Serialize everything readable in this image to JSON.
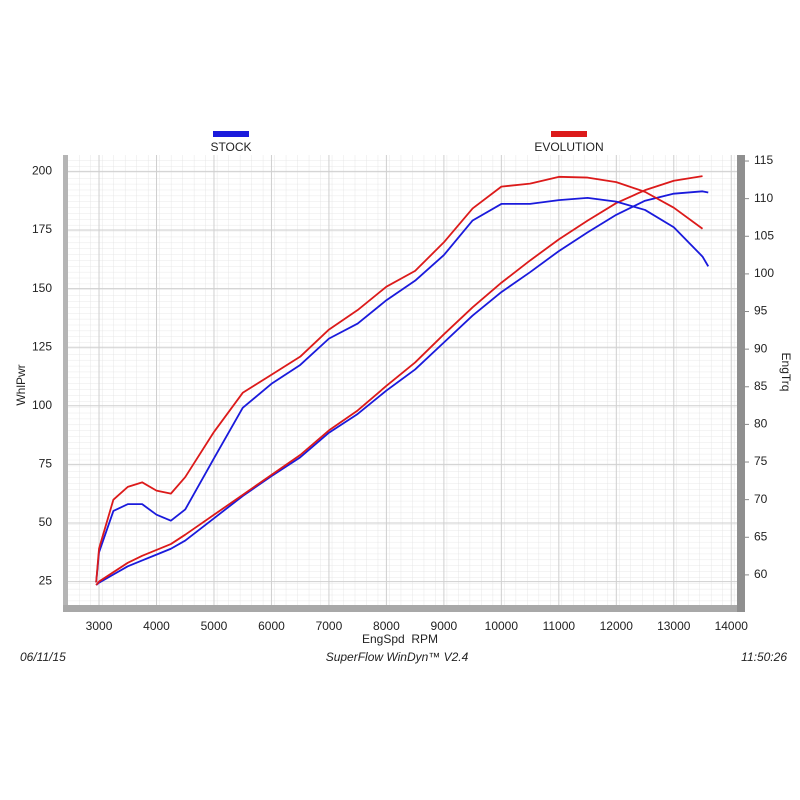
{
  "chart_data": {
    "type": "line",
    "legend": "top",
    "grid": true,
    "x_label": "EngSpd  RPM",
    "y_label": "WhlPwr",
    "y2_label": "EngTrq",
    "x": [
      2950,
      3000,
      3250,
      3500,
      3750,
      4000,
      4250,
      4500,
      5000,
      5500,
      6000,
      6500,
      7000,
      7500,
      8000,
      8500,
      9000,
      9500,
      10000,
      10500,
      11000,
      11500,
      12000,
      12500,
      13000,
      13500,
      13600
    ],
    "xlim": [
      2460,
      14100
    ],
    "xticks": [
      3000,
      4000,
      5000,
      6000,
      7000,
      8000,
      9000,
      10000,
      11000,
      12000,
      13000,
      14000
    ],
    "ylim": [
      15,
      207
    ],
    "yticks": [
      25,
      50,
      75,
      100,
      125,
      150,
      175,
      200
    ],
    "y2lim": [
      56,
      115.8
    ],
    "y2ticks": [
      60,
      65,
      70,
      75,
      80,
      85,
      90,
      95,
      100,
      105,
      110,
      115
    ],
    "series": [
      {
        "name": "STOCK",
        "color": "#1a1adc",
        "values": [
          23.5,
          24.5,
          28,
          31.5,
          34,
          36.5,
          39,
          42.5,
          52,
          61.5,
          70,
          78,
          88.5,
          96.5,
          106.5,
          115.5,
          127,
          138.5,
          148.5,
          157,
          166,
          174,
          181.5,
          187.5,
          190.5,
          191.5,
          191
        ]
      },
      {
        "name": "EVOLUTION",
        "color": "#dc1a1a",
        "values": [
          23.5,
          25,
          29,
          33,
          36,
          38.5,
          41,
          45,
          53.5,
          62,
          70.5,
          79,
          89.5,
          98,
          108.5,
          118.5,
          130.5,
          142,
          152.5,
          162,
          171,
          179,
          186.5,
          192,
          196,
          198,
          null
        ]
      },
      {
        "color": "#1a1adc",
        "axis": "y2",
        "values": [
          59,
          63,
          68.5,
          69.4,
          69.4,
          68,
          67.2,
          68.7,
          75.5,
          82.2,
          85.4,
          87.9,
          91.4,
          93.4,
          96.5,
          99.1,
          102.5,
          107.1,
          109.3,
          109.3,
          109.8,
          110.1,
          109.6,
          108.5,
          106.2,
          102.3,
          101
        ]
      },
      {
        "color": "#dc1a1a",
        "axis": "y2",
        "values": [
          59,
          63.5,
          70,
          71.7,
          72.3,
          71.2,
          70.8,
          73,
          79,
          84.2,
          86.6,
          89,
          92.6,
          95.2,
          98.3,
          100.4,
          104.2,
          108.7,
          111.6,
          112,
          112.9,
          112.8,
          112.2,
          110.9,
          108.8,
          106,
          null
        ]
      }
    ]
  },
  "footer": {
    "date": "06/11/15",
    "software": "SuperFlow WinDyn™ V2.4",
    "time": "11:50:26"
  }
}
